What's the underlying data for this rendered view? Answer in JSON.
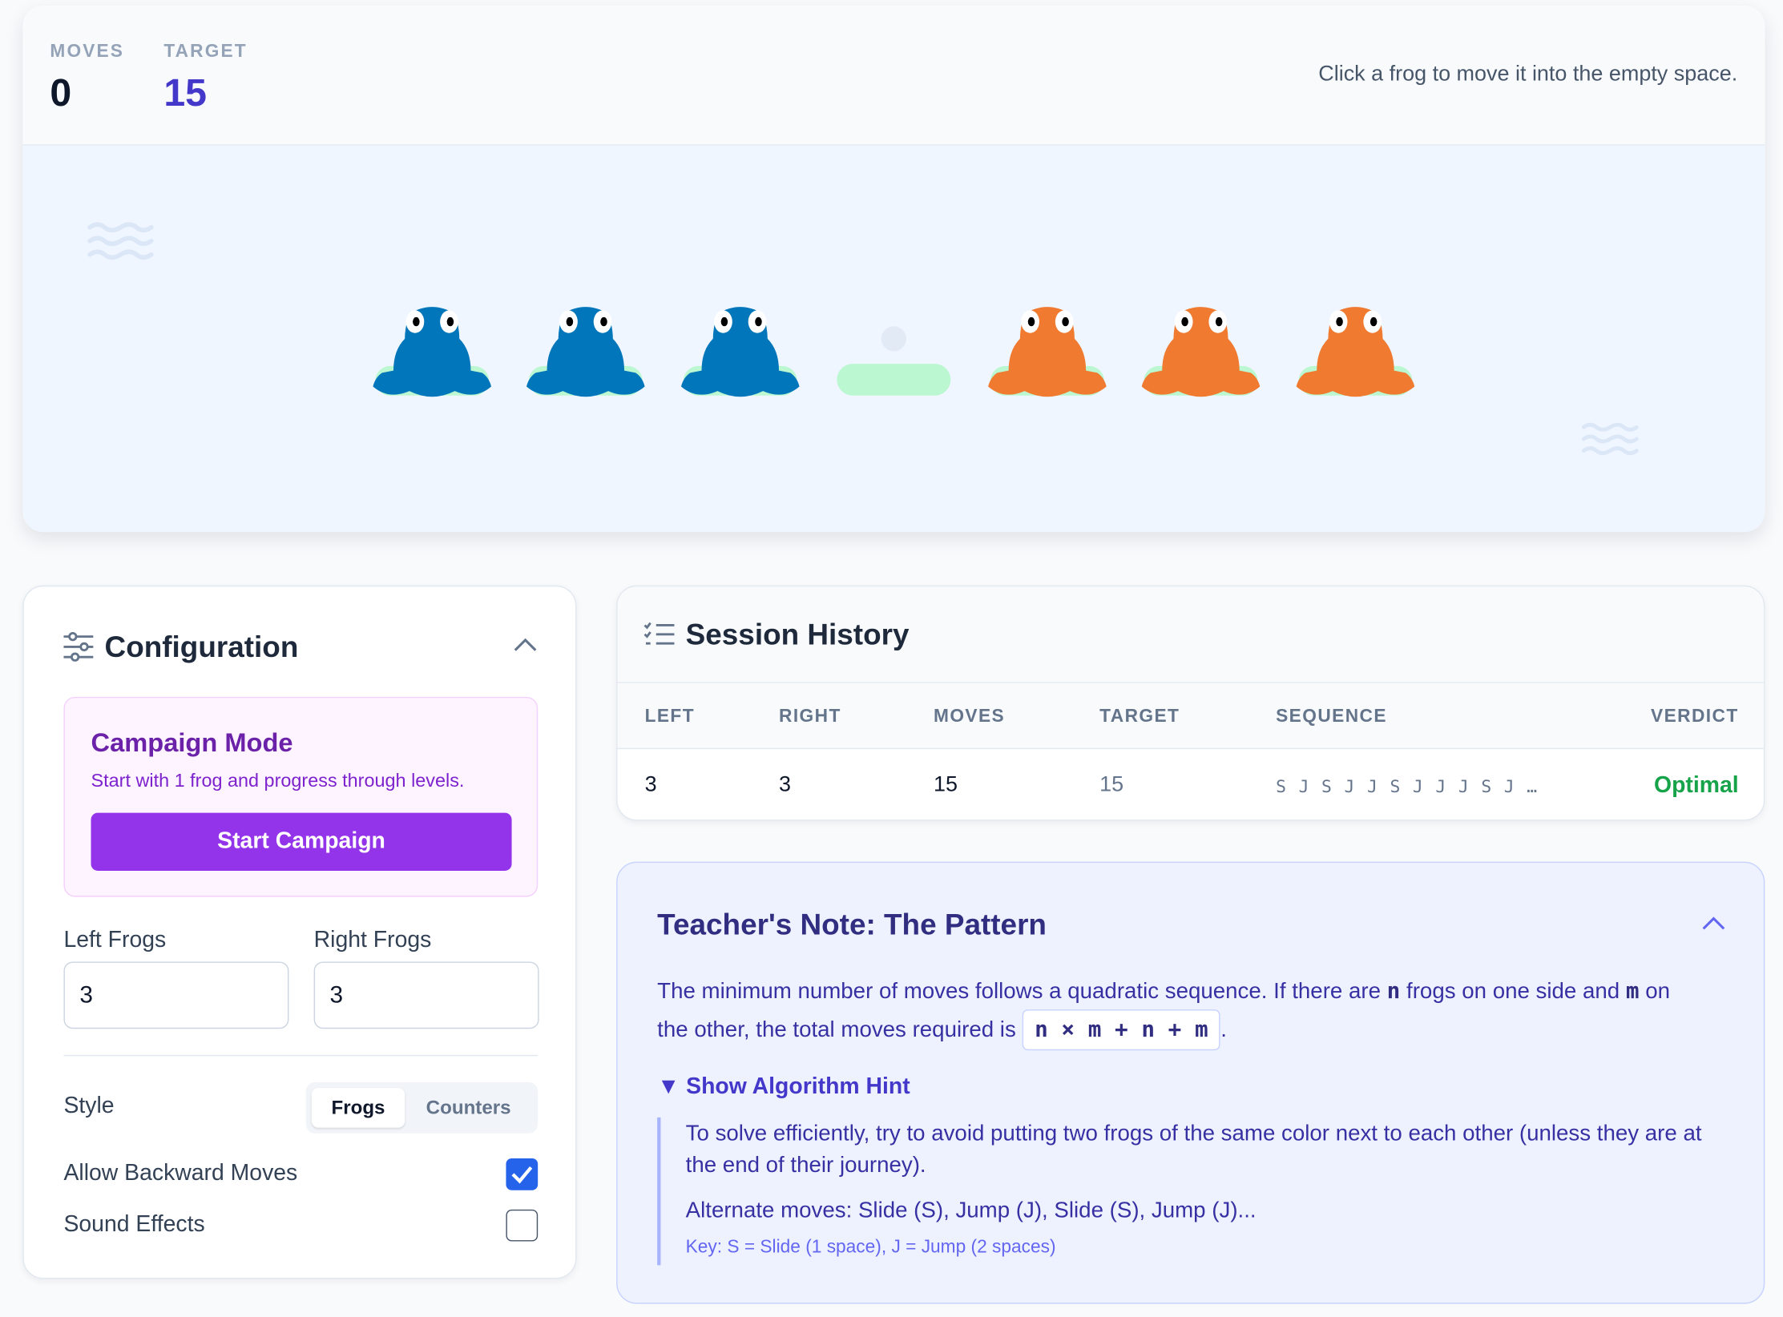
{
  "stats": {
    "moves_label": "MOVES",
    "moves": "0",
    "target_label": "TARGET",
    "target": "15"
  },
  "instruction": "Click a frog to move it into the empty space.",
  "board": [
    "blue",
    "blue",
    "blue",
    "empty",
    "orange",
    "orange",
    "orange"
  ],
  "colors": {
    "blue": "#0276ba",
    "orange": "#ef7a30",
    "pad": "#bbf7d0",
    "accent": "#9333ea",
    "indigo": "#4338ca",
    "optimal": "#16a34a"
  },
  "config": {
    "title": "Configuration",
    "campaign_title": "Campaign Mode",
    "campaign_desc": "Start with 1 frog and progress through levels.",
    "start_label": "Start Campaign",
    "left_label": "Left Frogs",
    "left_value": "3",
    "right_label": "Right Frogs",
    "right_value": "3",
    "style_label": "Style",
    "style_options": [
      "Frogs",
      "Counters"
    ],
    "style_selected": "Frogs",
    "backward_label": "Allow Backward Moves",
    "backward_checked": true,
    "sound_label": "Sound Effects",
    "sound_checked": false
  },
  "history": {
    "title": "Session History",
    "columns": [
      "LEFT",
      "RIGHT",
      "MOVES",
      "TARGET",
      "SEQUENCE",
      "VERDICT"
    ],
    "rows": [
      {
        "left": "3",
        "right": "3",
        "moves": "15",
        "target": "15",
        "sequence": "S J S J J S J J J S J …",
        "verdict": "Optimal"
      }
    ]
  },
  "note": {
    "title": "Teacher's Note: The Pattern",
    "p1a": "The minimum number of moves follows a quadratic sequence. If there are ",
    "n": "n",
    "p1b": " frogs on one side and ",
    "m": "m",
    "p1c": " on",
    "p2a": "the other, the total moves required is ",
    "formula": "n × m + n + m",
    "p2b": ".",
    "hint_label": "▼ Show Algorithm Hint",
    "hint1": "To solve efficiently, try to avoid putting two frogs of the same color next to each other (unless they are at the end of their journey).",
    "hint2": "Alternate moves: Slide (S), Jump (J), Slide (S), Jump (J)...",
    "key": "Key: S = Slide (1 space), J = Jump (2 spaces)"
  }
}
